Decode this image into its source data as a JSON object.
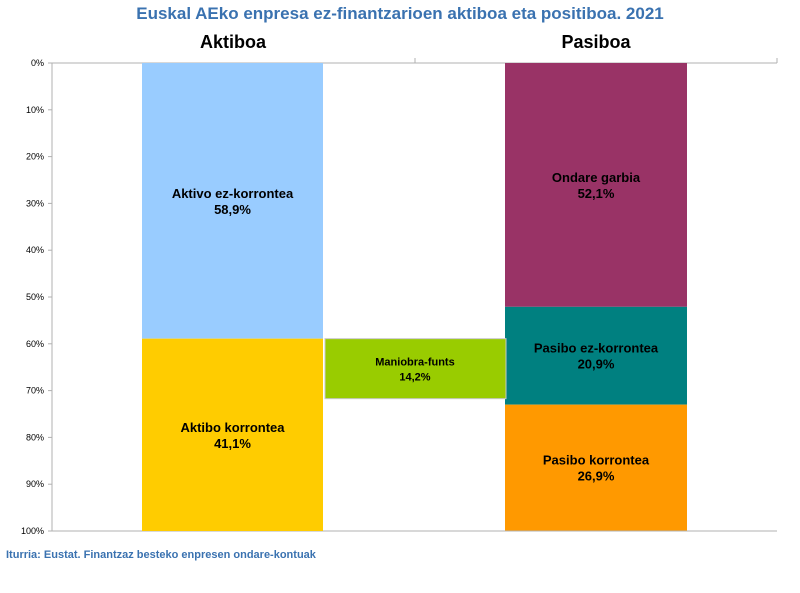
{
  "title": "Euskal AEko enpresa ez-finantzarioen aktiboa eta positiboa. 2021",
  "source": "Iturria: Eustat. Finantzaz besteko enpresen ondare-kontuak",
  "chart_data": {
    "type": "bar",
    "stacked": true,
    "title": "Euskal AEko enpresa ez-finantzarioen aktiboa eta positiboa. 2021",
    "categories": [
      "Aktiboa",
      "Pasiboa"
    ],
    "yaxis": {
      "ticks": [
        "0%",
        "10%",
        "20%",
        "30%",
        "40%",
        "50%",
        "60%",
        "70%",
        "80%",
        "90%",
        "100%"
      ],
      "ylim": [
        0,
        100
      ],
      "reversed": true
    },
    "grid": false,
    "stacks": [
      {
        "category": "Aktiboa",
        "segments": [
          {
            "name": "Aktivo ez-korrontea",
            "value": 58.9,
            "label": "58,9%",
            "color": "#99ccff"
          },
          {
            "name": "Aktibo korrontea",
            "value": 41.1,
            "label": "41,1%",
            "color": "#ffcc00"
          }
        ]
      },
      {
        "category": "Pasiboa",
        "segments": [
          {
            "name": "Ondare garbia",
            "value": 52.1,
            "label": "52,1%",
            "color": "#993366"
          },
          {
            "name": "Pasibo ez-korrontea",
            "value": 20.9,
            "label": "20,9%",
            "color": "#008080"
          },
          {
            "name": "Pasibo korrontea",
            "value": 26.9,
            "label": "26,9%",
            "color": "#ff9900"
          }
        ]
      }
    ],
    "bridge": {
      "name": "Maniobra-funts",
      "value": 14.2,
      "label": "14,2%",
      "start": 58.9,
      "color": "#99cc00"
    }
  }
}
